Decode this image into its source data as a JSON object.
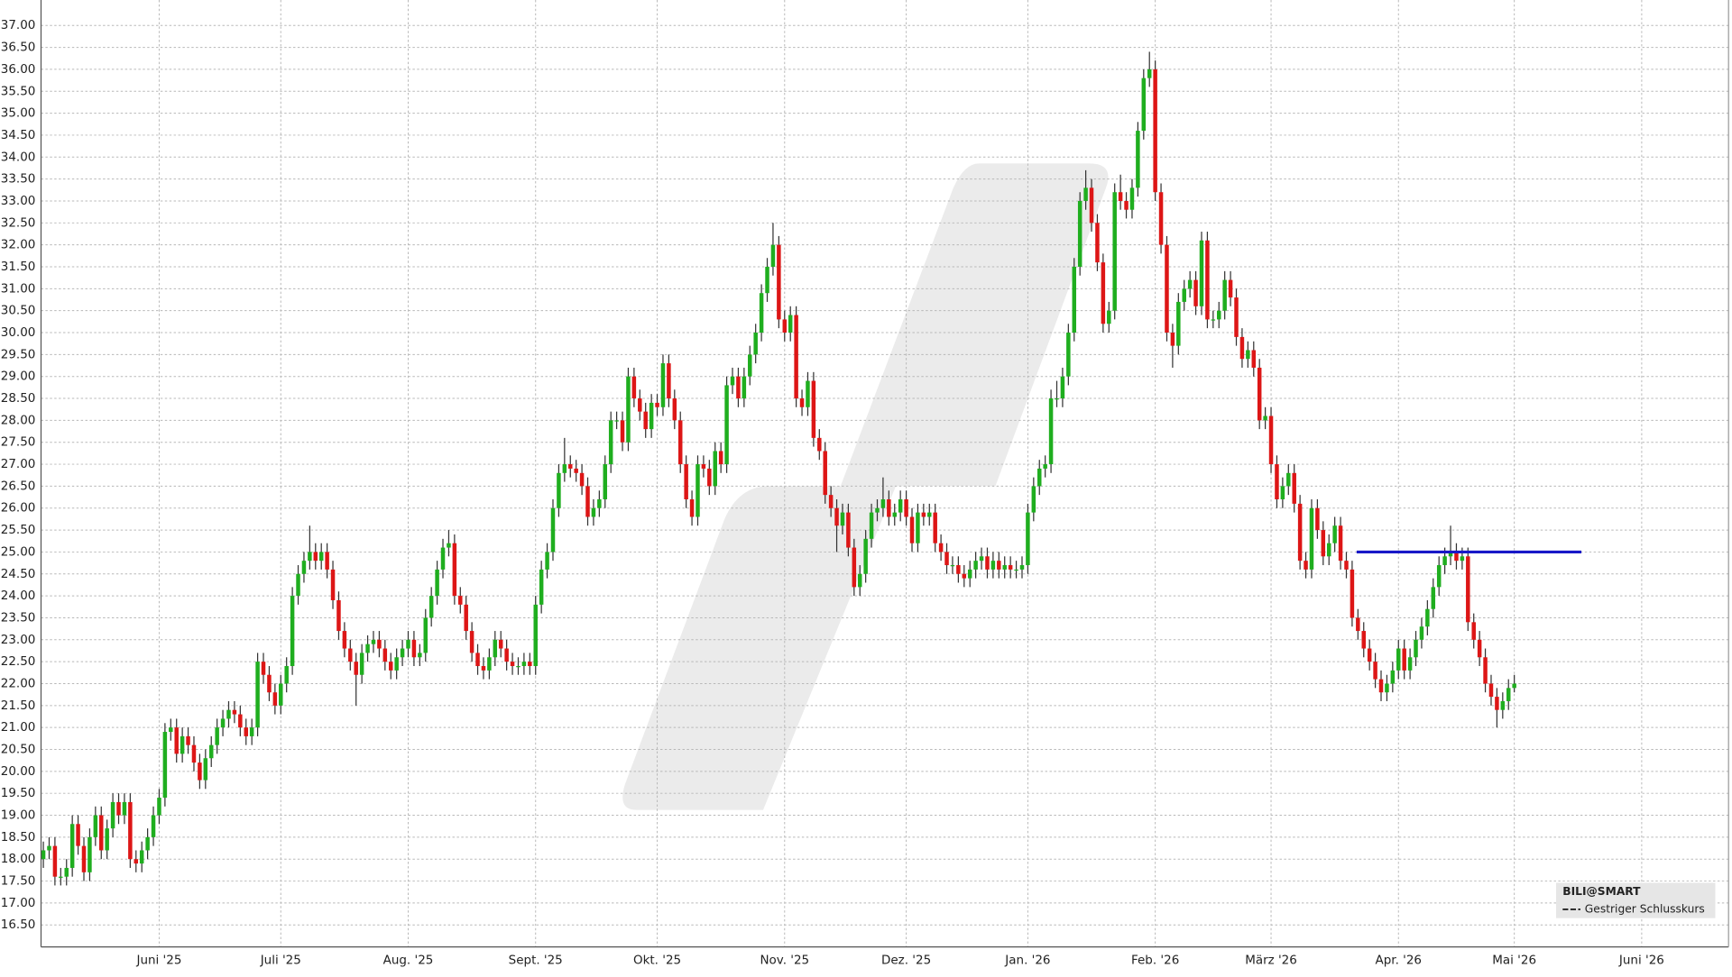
{
  "chart_data": {
    "type": "candlestick",
    "up_color": "#1fae1f",
    "down_color": "#dd1616",
    "grid": true,
    "legend_title": "BILI@SMART",
    "legend_item": "Gestriger Schlusskurs",
    "legend_position": "bottom-right",
    "hline": {
      "value": 25.0,
      "color": "#1818c8"
    },
    "ylim": [
      16.0,
      37.58
    ],
    "xlim": [
      -0.4,
      291
    ],
    "yticks": [
      {
        "value": 16.5,
        "label": "16.50"
      },
      {
        "value": 17,
        "label": "17.00"
      },
      {
        "value": 17.5,
        "label": "17.50"
      },
      {
        "value": 18,
        "label": "18.00"
      },
      {
        "value": 18.5,
        "label": "18.50"
      },
      {
        "value": 19,
        "label": "19.00"
      },
      {
        "value": 19.5,
        "label": "19.50"
      },
      {
        "value": 20,
        "label": "20.00"
      },
      {
        "value": 20.5,
        "label": "20.50"
      },
      {
        "value": 21,
        "label": "21.00"
      },
      {
        "value": 21.5,
        "label": "21.50"
      },
      {
        "value": 22,
        "label": "22.00"
      },
      {
        "value": 22.5,
        "label": "22.50"
      },
      {
        "value": 23,
        "label": "23.00"
      },
      {
        "value": 23.5,
        "label": "23.50"
      },
      {
        "value": 24,
        "label": "24.00"
      },
      {
        "value": 24.5,
        "label": "24.50"
      },
      {
        "value": 25,
        "label": "25.00"
      },
      {
        "value": 25.5,
        "label": "25.50"
      },
      {
        "value": 26,
        "label": "26.00"
      },
      {
        "value": 26.5,
        "label": "26.50"
      },
      {
        "value": 27,
        "label": "27.00"
      },
      {
        "value": 27.5,
        "label": "27.50"
      },
      {
        "value": 28,
        "label": "28.00"
      },
      {
        "value": 28.5,
        "label": "28.50"
      },
      {
        "value": 29,
        "label": "29.00"
      },
      {
        "value": 29.5,
        "label": "29.50"
      },
      {
        "value": 30,
        "label": "30.00"
      },
      {
        "value": 30.5,
        "label": "30.50"
      },
      {
        "value": 31,
        "label": "31.00"
      },
      {
        "value": 31.5,
        "label": "31.50"
      },
      {
        "value": 32,
        "label": "32.00"
      },
      {
        "value": 32.5,
        "label": "32.50"
      },
      {
        "value": 33,
        "label": "33.00"
      },
      {
        "value": 33.5,
        "label": "33.50"
      },
      {
        "value": 34,
        "label": "34.00"
      },
      {
        "value": 34.5,
        "label": "34.50"
      },
      {
        "value": 35,
        "label": "35.00"
      },
      {
        "value": 35.5,
        "label": "35.50"
      },
      {
        "value": 36,
        "label": "36.00"
      },
      {
        "value": 36.5,
        "label": "36.50"
      },
      {
        "value": 37,
        "label": "37.00"
      }
    ],
    "xticks": [
      {
        "value": 20,
        "label": "Juni '25"
      },
      {
        "value": 41,
        "label": "Juli '25"
      },
      {
        "value": 63,
        "label": "Aug. '25"
      },
      {
        "value": 85,
        "label": "Sept. '25"
      },
      {
        "value": 106,
        "label": "Okt. '25"
      },
      {
        "value": 128,
        "label": "Nov. '25"
      },
      {
        "value": 149,
        "label": "Dez. '25"
      },
      {
        "value": 170,
        "label": "Jan. '26"
      },
      {
        "value": 192,
        "label": "Feb. '26"
      },
      {
        "value": 212,
        "label": "März '26"
      },
      {
        "value": 234,
        "label": "Apr. '26"
      },
      {
        "value": 254,
        "label": "Mai '26"
      },
      {
        "value": 276,
        "label": "Juni '26"
      }
    ],
    "open": [
      18.0,
      18.2,
      18.3,
      17.6,
      17.6,
      17.8,
      18.8,
      18.3,
      17.7,
      18.5,
      19.0,
      18.2,
      18.7,
      19.3,
      19.0,
      19.3,
      18.0,
      17.9,
      18.2,
      18.5,
      19.0,
      19.4,
      20.9,
      21.0,
      20.4,
      20.8,
      20.6,
      20.2,
      19.8,
      20.3,
      20.6,
      21.0,
      21.2,
      21.4,
      21.3,
      21.0,
      20.8,
      21.0,
      22.5,
      22.2,
      21.8,
      21.5,
      22.0,
      22.4,
      24.0,
      24.5,
      24.8,
      25.0,
      24.8,
      25.0,
      24.6,
      23.9,
      23.2,
      22.8,
      22.5,
      22.2,
      22.7,
      22.9,
      23.0,
      22.8,
      22.5,
      22.3,
      22.6,
      22.8,
      23.0,
      22.6,
      22.7,
      23.5,
      24.0,
      24.6,
      25.1,
      25.2,
      24.0,
      23.8,
      23.2,
      22.7,
      22.4,
      22.3,
      22.6,
      23.0,
      22.8,
      22.5,
      22.4,
      22.4,
      22.5,
      22.4,
      23.8,
      24.6,
      25.0,
      26.0,
      26.8,
      27.0,
      26.9,
      26.8,
      26.5,
      25.8,
      26.0,
      26.2,
      27.0,
      28.0,
      28.0,
      27.5,
      29.0,
      28.5,
      28.2,
      27.8,
      28.4,
      28.3,
      29.3,
      28.5,
      28.0,
      27.0,
      26.2,
      25.8,
      27.0,
      26.9,
      26.5,
      27.3,
      27.0,
      28.8,
      29.0,
      28.5,
      29.0,
      29.5,
      30.0,
      30.9,
      31.5,
      32.0,
      30.3,
      30.0,
      30.4,
      28.5,
      28.3,
      28.9,
      27.6,
      27.3,
      26.3,
      26.0,
      25.6,
      25.9,
      25.1,
      24.2,
      24.5,
      25.3,
      25.9,
      26.0,
      26.2,
      25.8,
      25.9,
      26.2,
      25.8,
      25.2,
      25.9,
      25.8,
      25.9,
      25.2,
      25.0,
      24.7,
      24.7,
      24.5,
      24.4,
      24.6,
      24.8,
      24.9,
      24.6,
      24.8,
      24.6,
      24.7,
      24.6,
      24.6,
      24.7,
      25.9,
      26.5,
      26.9,
      27.0,
      28.5,
      28.5,
      29.0,
      30.0,
      31.5,
      33.0,
      33.3,
      32.5,
      31.6,
      30.2,
      30.5,
      33.2,
      33.0,
      32.8,
      33.3,
      34.6,
      35.8,
      36.0,
      33.2,
      32.0,
      30.0,
      29.7,
      30.7,
      31.0,
      31.2,
      30.6,
      32.1,
      30.3,
      30.3,
      30.5,
      31.2,
      30.8,
      29.9,
      29.4,
      29.6,
      29.2,
      28.0,
      28.1,
      27.0,
      26.2,
      26.5,
      26.8,
      26.1,
      24.8,
      24.6,
      26.0,
      25.5,
      24.9,
      25.2,
      25.6,
      24.8,
      24.6,
      23.5,
      23.2,
      22.8,
      22.5,
      22.1,
      21.8,
      22.0,
      22.3,
      22.8,
      22.3,
      22.6,
      23.0,
      23.3,
      23.7,
      24.2,
      24.7,
      24.9,
      25.0,
      24.8,
      24.9,
      23.4,
      23.0,
      22.6,
      22.0,
      21.7,
      21.4,
      21.6,
      21.9
    ],
    "high": [
      18.4,
      18.5,
      18.5,
      17.8,
      18.0,
      19.0,
      19.0,
      18.5,
      18.7,
      19.2,
      19.2,
      18.9,
      19.5,
      19.5,
      19.5,
      19.5,
      18.2,
      18.4,
      18.7,
      19.2,
      19.6,
      21.1,
      21.2,
      21.2,
      21.0,
      21.0,
      20.8,
      20.4,
      20.5,
      20.8,
      21.2,
      21.4,
      21.6,
      21.6,
      21.5,
      21.2,
      21.2,
      22.7,
      22.7,
      22.4,
      22.0,
      22.2,
      22.6,
      24.2,
      24.7,
      25.0,
      25.6,
      25.2,
      25.2,
      25.2,
      24.8,
      24.1,
      23.4,
      23.0,
      22.7,
      22.9,
      23.1,
      23.2,
      23.2,
      23.0,
      22.7,
      22.8,
      23.0,
      23.2,
      23.2,
      22.9,
      23.7,
      24.2,
      24.8,
      25.3,
      25.5,
      25.4,
      24.2,
      24.0,
      23.4,
      22.9,
      22.6,
      22.8,
      23.2,
      23.2,
      23.0,
      22.7,
      22.6,
      22.7,
      22.7,
      24.0,
      24.8,
      25.2,
      26.2,
      27.0,
      27.6,
      27.2,
      27.1,
      27.0,
      26.7,
      26.2,
      26.4,
      27.2,
      28.2,
      28.2,
      28.2,
      29.2,
      29.2,
      28.7,
      28.4,
      28.6,
      28.6,
      29.5,
      29.5,
      28.7,
      28.2,
      27.2,
      26.4,
      27.2,
      27.2,
      27.1,
      27.5,
      27.5,
      29.0,
      29.2,
      29.2,
      29.2,
      29.7,
      30.2,
      31.1,
      31.7,
      32.5,
      32.2,
      30.5,
      30.6,
      30.6,
      28.7,
      29.1,
      29.1,
      27.8,
      27.5,
      26.5,
      26.2,
      26.1,
      26.1,
      25.3,
      24.7,
      25.5,
      26.1,
      26.2,
      26.7,
      26.4,
      26.1,
      26.4,
      26.4,
      26.0,
      26.1,
      26.1,
      26.1,
      26.1,
      25.4,
      25.2,
      24.9,
      24.9,
      24.7,
      24.8,
      25.0,
      25.1,
      25.1,
      25.0,
      25.0,
      24.9,
      24.9,
      24.8,
      24.9,
      26.1,
      26.7,
      27.1,
      27.2,
      28.7,
      28.9,
      29.2,
      30.2,
      31.7,
      33.2,
      33.7,
      33.5,
      32.7,
      31.8,
      30.7,
      33.4,
      33.6,
      33.2,
      33.5,
      34.8,
      36.0,
      36.4,
      36.2,
      33.4,
      32.2,
      30.2,
      30.9,
      31.2,
      31.4,
      31.4,
      32.3,
      32.3,
      30.5,
      30.7,
      31.4,
      31.4,
      31.0,
      30.1,
      29.8,
      29.8,
      29.4,
      28.3,
      28.3,
      27.2,
      26.7,
      27.0,
      27.0,
      26.3,
      25.0,
      26.2,
      26.2,
      25.7,
      25.4,
      25.8,
      25.8,
      25.0,
      24.8,
      23.7,
      23.4,
      23.0,
      22.7,
      22.3,
      22.2,
      22.5,
      23.0,
      23.0,
      22.8,
      23.2,
      23.5,
      23.9,
      24.4,
      24.9,
      25.1,
      25.6,
      25.2,
      25.1,
      25.1,
      23.6,
      23.2,
      22.8,
      22.2,
      21.9,
      21.8,
      22.1,
      22.2
    ],
    "low": [
      17.8,
      18.0,
      17.4,
      17.4,
      17.4,
      17.6,
      18.1,
      17.5,
      17.5,
      18.3,
      18.0,
      18.0,
      18.5,
      18.8,
      18.8,
      17.8,
      17.7,
      17.7,
      18.0,
      18.3,
      18.8,
      19.2,
      20.7,
      20.2,
      20.2,
      20.4,
      20.0,
      19.6,
      19.6,
      20.1,
      20.4,
      20.8,
      21.0,
      21.1,
      20.8,
      20.6,
      20.6,
      20.8,
      22.0,
      21.6,
      21.3,
      21.3,
      21.8,
      22.2,
      23.8,
      24.3,
      24.6,
      24.6,
      24.6,
      24.4,
      23.7,
      23.0,
      22.6,
      22.3,
      21.5,
      22.0,
      22.5,
      22.7,
      22.6,
      22.3,
      22.1,
      22.1,
      22.4,
      22.6,
      22.4,
      22.4,
      22.5,
      23.3,
      23.8,
      24.4,
      24.9,
      23.8,
      23.6,
      23.0,
      22.5,
      22.2,
      22.1,
      22.1,
      22.4,
      22.6,
      22.3,
      22.2,
      22.2,
      22.2,
      22.2,
      22.2,
      23.6,
      24.4,
      24.8,
      25.8,
      26.6,
      26.7,
      26.6,
      26.3,
      25.6,
      25.6,
      25.8,
      26.0,
      26.8,
      27.8,
      27.3,
      27.3,
      28.3,
      28.0,
      27.6,
      27.6,
      28.1,
      28.1,
      28.3,
      27.8,
      26.8,
      26.0,
      25.6,
      25.6,
      26.7,
      26.3,
      26.3,
      26.8,
      26.8,
      28.6,
      28.3,
      28.3,
      28.8,
      29.3,
      29.8,
      30.7,
      31.3,
      30.1,
      29.8,
      29.8,
      28.3,
      28.1,
      28.1,
      27.4,
      27.1,
      26.1,
      25.8,
      25.0,
      25.4,
      24.9,
      24.0,
      24.0,
      24.3,
      25.1,
      25.7,
      25.8,
      25.6,
      25.6,
      25.7,
      25.6,
      25.0,
      25.0,
      25.6,
      25.6,
      25.0,
      24.8,
      24.5,
      24.5,
      24.3,
      24.2,
      24.2,
      24.4,
      24.6,
      24.4,
      24.4,
      24.4,
      24.4,
      24.4,
      24.4,
      24.4,
      24.5,
      25.7,
      26.3,
      26.7,
      26.8,
      28.3,
      28.3,
      28.8,
      29.8,
      31.3,
      32.8,
      32.3,
      31.4,
      30.0,
      30.0,
      30.3,
      32.8,
      32.6,
      32.6,
      33.1,
      34.4,
      35.6,
      33.0,
      31.8,
      29.8,
      29.2,
      29.5,
      30.5,
      30.8,
      30.4,
      30.4,
      30.1,
      30.1,
      30.1,
      30.3,
      30.6,
      29.7,
      29.2,
      29.2,
      29.0,
      27.8,
      27.8,
      26.8,
      26.0,
      26.0,
      26.3,
      25.9,
      24.6,
      24.4,
      24.4,
      25.3,
      24.7,
      24.7,
      25.0,
      24.6,
      24.4,
      23.3,
      23.0,
      22.6,
      22.3,
      21.9,
      21.6,
      21.6,
      21.8,
      22.1,
      22.1,
      22.1,
      22.4,
      22.8,
      23.1,
      23.5,
      24.0,
      24.5,
      24.7,
      24.6,
      24.6,
      23.2,
      22.8,
      22.4,
      21.8,
      21.5,
      21.0,
      21.2,
      21.4,
      21.8
    ],
    "close": [
      18.2,
      18.3,
      17.6,
      17.6,
      17.8,
      18.8,
      18.3,
      17.7,
      18.5,
      19.0,
      18.2,
      18.7,
      19.3,
      19.0,
      19.3,
      18.0,
      17.9,
      18.2,
      18.5,
      19.0,
      19.4,
      20.9,
      21.0,
      20.4,
      20.8,
      20.6,
      20.2,
      19.8,
      20.3,
      20.6,
      21.0,
      21.2,
      21.4,
      21.3,
      21.0,
      20.8,
      21.0,
      22.5,
      22.2,
      21.8,
      21.5,
      22.0,
      22.4,
      24.0,
      24.5,
      24.8,
      25.0,
      24.8,
      25.0,
      24.6,
      23.9,
      23.2,
      22.8,
      22.5,
      22.2,
      22.7,
      22.9,
      23.0,
      22.8,
      22.5,
      22.3,
      22.6,
      22.8,
      23.0,
      22.6,
      22.7,
      23.5,
      24.0,
      24.6,
      25.1,
      25.2,
      24.0,
      23.8,
      23.2,
      22.7,
      22.4,
      22.3,
      22.6,
      23.0,
      22.8,
      22.5,
      22.4,
      22.4,
      22.5,
      22.4,
      23.8,
      24.6,
      25.0,
      26.0,
      26.8,
      27.0,
      26.9,
      26.8,
      26.5,
      25.8,
      26.0,
      26.2,
      27.0,
      28.0,
      28.0,
      27.5,
      29.0,
      28.5,
      28.2,
      27.8,
      28.4,
      28.3,
      29.3,
      28.5,
      28.0,
      27.0,
      26.2,
      25.8,
      27.0,
      26.9,
      26.5,
      27.3,
      27.0,
      28.8,
      29.0,
      28.5,
      29.0,
      29.5,
      30.0,
      30.9,
      31.5,
      32.0,
      30.3,
      30.0,
      30.4,
      28.5,
      28.3,
      28.9,
      27.6,
      27.3,
      26.3,
      26.0,
      25.6,
      25.9,
      25.1,
      24.2,
      24.5,
      25.3,
      25.9,
      26.0,
      26.2,
      25.8,
      25.9,
      26.2,
      25.8,
      25.2,
      25.9,
      25.8,
      25.9,
      25.2,
      25.0,
      24.7,
      24.7,
      24.5,
      24.4,
      24.6,
      24.8,
      24.9,
      24.6,
      24.8,
      24.6,
      24.7,
      24.6,
      24.6,
      24.7,
      25.9,
      26.5,
      26.9,
      27.0,
      28.5,
      28.5,
      29.0,
      30.0,
      31.5,
      33.0,
      33.3,
      32.5,
      31.6,
      30.2,
      30.5,
      33.2,
      33.0,
      32.8,
      33.3,
      34.6,
      35.8,
      36.0,
      33.2,
      32.0,
      30.0,
      29.7,
      30.7,
      31.0,
      31.2,
      30.6,
      32.1,
      30.3,
      30.3,
      30.5,
      31.2,
      30.8,
      29.9,
      29.4,
      29.6,
      29.2,
      28.0,
      28.1,
      27.0,
      26.2,
      26.5,
      26.8,
      26.1,
      24.8,
      24.6,
      26.0,
      25.5,
      24.9,
      25.2,
      25.6,
      24.8,
      24.6,
      23.5,
      23.2,
      22.8,
      22.5,
      22.1,
      21.8,
      22.0,
      22.3,
      22.8,
      22.3,
      22.6,
      23.0,
      23.3,
      23.7,
      24.2,
      24.7,
      24.9,
      25.0,
      24.8,
      24.9,
      23.4,
      23.0,
      22.6,
      22.0,
      21.7,
      21.4,
      21.6,
      21.9,
      22.0
    ]
  }
}
